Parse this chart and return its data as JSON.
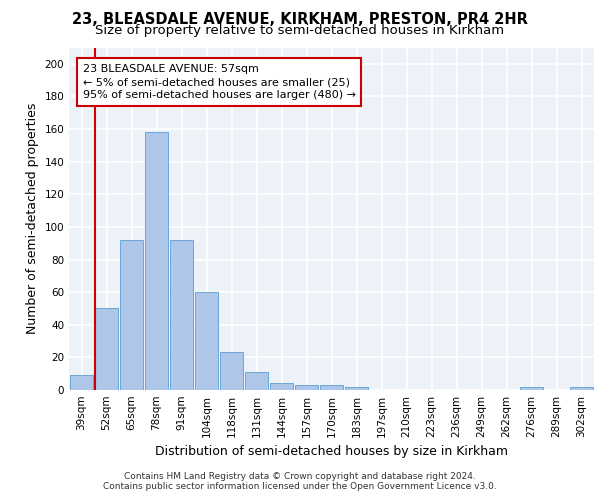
{
  "title1": "23, BLEASDALE AVENUE, KIRKHAM, PRESTON, PR4 2HR",
  "title2": "Size of property relative to semi-detached houses in Kirkham",
  "xlabel": "Distribution of semi-detached houses by size in Kirkham",
  "ylabel": "Number of semi-detached properties",
  "categories": [
    "39sqm",
    "52sqm",
    "65sqm",
    "78sqm",
    "91sqm",
    "104sqm",
    "118sqm",
    "131sqm",
    "144sqm",
    "157sqm",
    "170sqm",
    "183sqm",
    "197sqm",
    "210sqm",
    "223sqm",
    "236sqm",
    "249sqm",
    "262sqm",
    "276sqm",
    "289sqm",
    "302sqm"
  ],
  "values": [
    9,
    50,
    92,
    158,
    92,
    60,
    23,
    11,
    4,
    3,
    3,
    2,
    0,
    0,
    0,
    0,
    0,
    0,
    2,
    0,
    2
  ],
  "bar_color": "#aec6e8",
  "bar_edge_color": "#5a9fd4",
  "vline_color": "#cc0000",
  "annotation_title": "23 BLEASDALE AVENUE: 57sqm",
  "annotation_line1": "← 5% of semi-detached houses are smaller (25)",
  "annotation_line2": "95% of semi-detached houses are larger (480) →",
  "annotation_box_color": "#cc0000",
  "ylim": [
    0,
    210
  ],
  "yticks": [
    0,
    20,
    40,
    60,
    80,
    100,
    120,
    140,
    160,
    180,
    200
  ],
  "footnote1": "Contains HM Land Registry data © Crown copyright and database right 2024.",
  "footnote2": "Contains public sector information licensed under the Open Government Licence v3.0.",
  "bg_color": "#edf2f9",
  "grid_color": "#ffffff",
  "title1_fontsize": 10.5,
  "title2_fontsize": 9.5,
  "axis_label_fontsize": 9,
  "tick_fontsize": 7.5,
  "footnote_fontsize": 6.5,
  "ann_fontsize": 8.0
}
